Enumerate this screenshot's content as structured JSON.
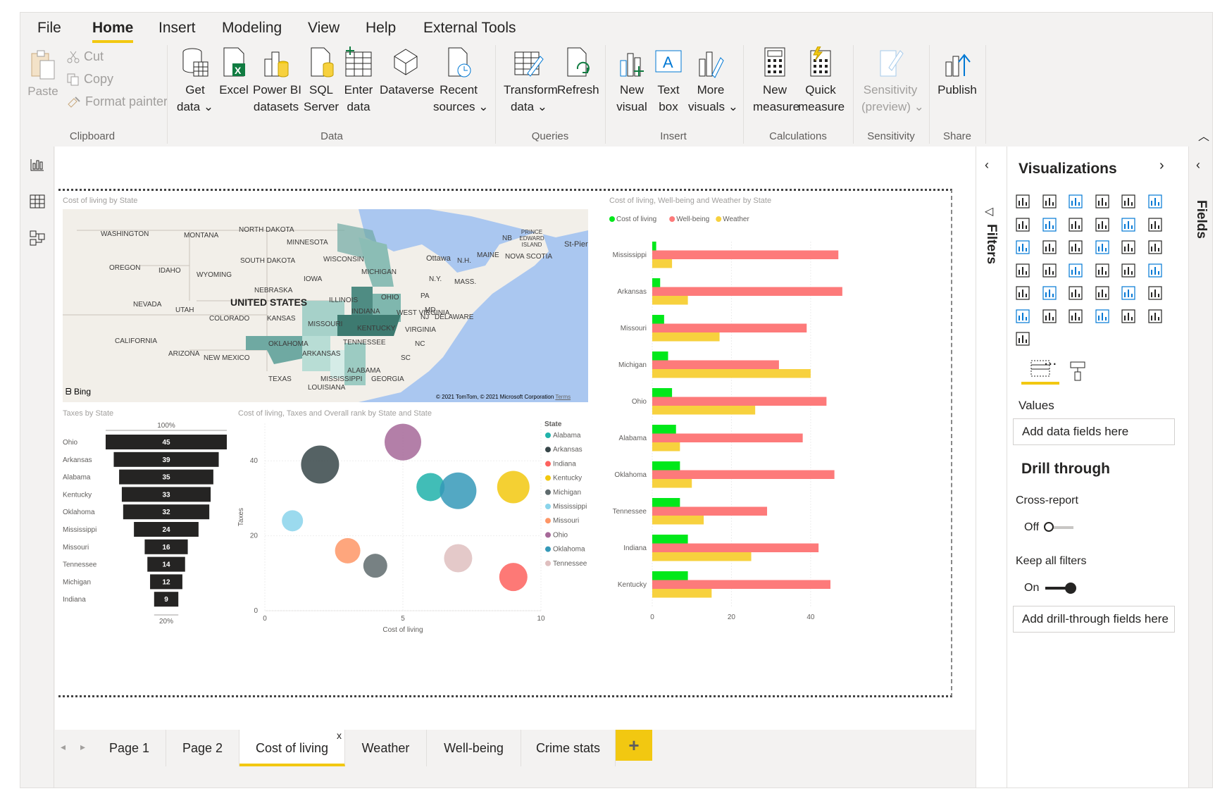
{
  "menu": {
    "tabs": [
      "File",
      "Home",
      "Insert",
      "Modeling",
      "View",
      "Help",
      "External Tools"
    ],
    "active": "Home"
  },
  "ribbon": {
    "clipboard": {
      "paste": "Paste",
      "cut": "Cut",
      "copy": "Copy",
      "format_painter": "Format painter",
      "group": "Clipboard"
    },
    "data": {
      "get_data": [
        "Get",
        "data"
      ],
      "excel": "Excel",
      "pbi_datasets": [
        "Power BI",
        "datasets"
      ],
      "sql_server": [
        "SQL",
        "Server"
      ],
      "enter_data": [
        "Enter",
        "data"
      ],
      "dataverse": "Dataverse",
      "recent_sources": [
        "Recent",
        "sources"
      ],
      "group": "Data"
    },
    "queries": {
      "transform": [
        "Transform",
        "data"
      ],
      "refresh": "Refresh",
      "group": "Queries"
    },
    "insert": {
      "new_visual": [
        "New",
        "visual"
      ],
      "text_box": [
        "Text",
        "box"
      ],
      "more_visuals": [
        "More",
        "visuals"
      ],
      "group": "Insert"
    },
    "calculations": {
      "new_measure": [
        "New",
        "measure"
      ],
      "quick_measure": [
        "Quick",
        "measure"
      ],
      "group": "Calculations"
    },
    "sensitivity": {
      "sensitivity": [
        "Sensitivity",
        "(preview)"
      ],
      "group": "Sensitivity"
    },
    "share": {
      "publish": "Publish",
      "group": "Share"
    }
  },
  "map": {
    "title": "Cost of living by State",
    "labels": [
      "WASHINGTON",
      "MONTANA",
      "NORTH DAKOTA",
      "MINNESOTA",
      "OREGON",
      "IDAHO",
      "SOUTH DAKOTA",
      "WISCONSIN",
      "MICHIGAN",
      "WYOMING",
      "IOWA",
      "NEBRASKA",
      "NEVADA",
      "UTAH",
      "UNITED STATES",
      "ILLINOIS",
      "INDIANA",
      "OHIO",
      "PA",
      "COLORADO",
      "KANSAS",
      "MISSOURI",
      "KENTUCKY",
      "WEST VIRGINIA",
      "VIRGINIA",
      "CALIFORNIA",
      "OKLAHOMA",
      "TENNESSEE",
      "NC",
      "ARIZONA",
      "NEW MEXICO",
      "ARKANSAS",
      "SC",
      "TEXAS",
      "MISSISSIPPI",
      "ALABAMA",
      "GEORGIA",
      "LOUISIANA",
      "MAINE",
      "N.Y.",
      "MASS.",
      "N.H.",
      "NB",
      "PRINCE EDWARD ISLAND",
      "NOVA SCOTIA",
      "Ottawa",
      "St-Pierr",
      "MD",
      "NJ",
      "DELAWARE"
    ],
    "bing": "Bing",
    "copyright": "© 2021 TomTom, © 2021 Microsoft Corporation",
    "terms": "Terms"
  },
  "funnel": {
    "title": "Taxes by State",
    "top_label": "100%",
    "bottom_label": "20%",
    "states": [
      "Ohio",
      "Arkansas",
      "Alabama",
      "Kentucky",
      "Oklahoma",
      "Mississippi",
      "Missouri",
      "Tennessee",
      "Michigan",
      "Indiana"
    ],
    "values": [
      45,
      39,
      35,
      33,
      32,
      24,
      16,
      14,
      12,
      9
    ]
  },
  "scatter": {
    "title": "Cost of living, Taxes and Overall rank by State and State",
    "xlabel": "Cost of living",
    "ylabel": "Taxes",
    "xticks": [
      "0",
      "5",
      "10"
    ],
    "yticks": [
      "0",
      "20",
      "40"
    ],
    "legend_title": "State",
    "points": [
      {
        "state": "Alabama",
        "x": 6,
        "y": 33,
        "r": 20,
        "color": "#20b2aa"
      },
      {
        "state": "Arkansas",
        "x": 2,
        "y": 39,
        "r": 27,
        "color": "#374649"
      },
      {
        "state": "Indiana",
        "x": 9,
        "y": 9,
        "r": 20,
        "color": "#fd625e"
      },
      {
        "state": "Kentucky",
        "x": 9,
        "y": 33,
        "r": 23,
        "color": "#f2c80f"
      },
      {
        "state": "Michigan",
        "x": 4,
        "y": 12,
        "r": 17,
        "color": "#5f6b6d"
      },
      {
        "state": "Mississippi",
        "x": 1,
        "y": 24,
        "r": 15,
        "color": "#8ad4eb"
      },
      {
        "state": "Missouri",
        "x": 3,
        "y": 16,
        "r": 18,
        "color": "#fe9666"
      },
      {
        "state": "Ohio",
        "x": 5,
        "y": 45,
        "r": 26,
        "color": "#a66999"
      },
      {
        "state": "Oklahoma",
        "x": 7,
        "y": 32,
        "r": 26,
        "color": "#3599b8"
      },
      {
        "state": "Tennessee",
        "x": 7,
        "y": 14,
        "r": 20,
        "color": "#dfbfbf"
      }
    ]
  },
  "bar": {
    "title": "Cost of living, Well-being and Weather by State",
    "series": [
      {
        "name": "Cost of living",
        "color": "#01e81a",
        "values": [
          1,
          2,
          3,
          4,
          5,
          6,
          7,
          7,
          9,
          9
        ]
      },
      {
        "name": "Well-being",
        "color": "#fd7a7a",
        "values": [
          47,
          48,
          39,
          32,
          44,
          38,
          46,
          29,
          42,
          45
        ]
      },
      {
        "name": "Weather",
        "color": "#f7d13e",
        "values": [
          5,
          9,
          17,
          40,
          26,
          7,
          10,
          13,
          25,
          15
        ]
      }
    ],
    "categories": [
      "Mississippi",
      "Arkansas",
      "Missouri",
      "Michigan",
      "Ohio",
      "Alabama",
      "Oklahoma",
      "Tennessee",
      "Indiana",
      "Kentucky"
    ],
    "xticks": [
      "0",
      "20",
      "40"
    ]
  },
  "tabs": {
    "items": [
      "Page 1",
      "Page 2",
      "Cost of living",
      "Weather",
      "Well-being",
      "Crime stats"
    ],
    "active": "Cost of living",
    "close": "x",
    "add": "+"
  },
  "filters": {
    "label": "Filters"
  },
  "visualizations": {
    "title": "Visualizations",
    "values_label": "Values",
    "add_data_fields": "Add data fields here",
    "drill_title": "Drill through",
    "cross_report": "Cross-report",
    "cross_state": "Off",
    "keep_filters": "Keep all filters",
    "keep_state": "On",
    "add_drill_fields": "Add drill-through fields here",
    "more": "..."
  },
  "fields": {
    "label": "Fields"
  }
}
